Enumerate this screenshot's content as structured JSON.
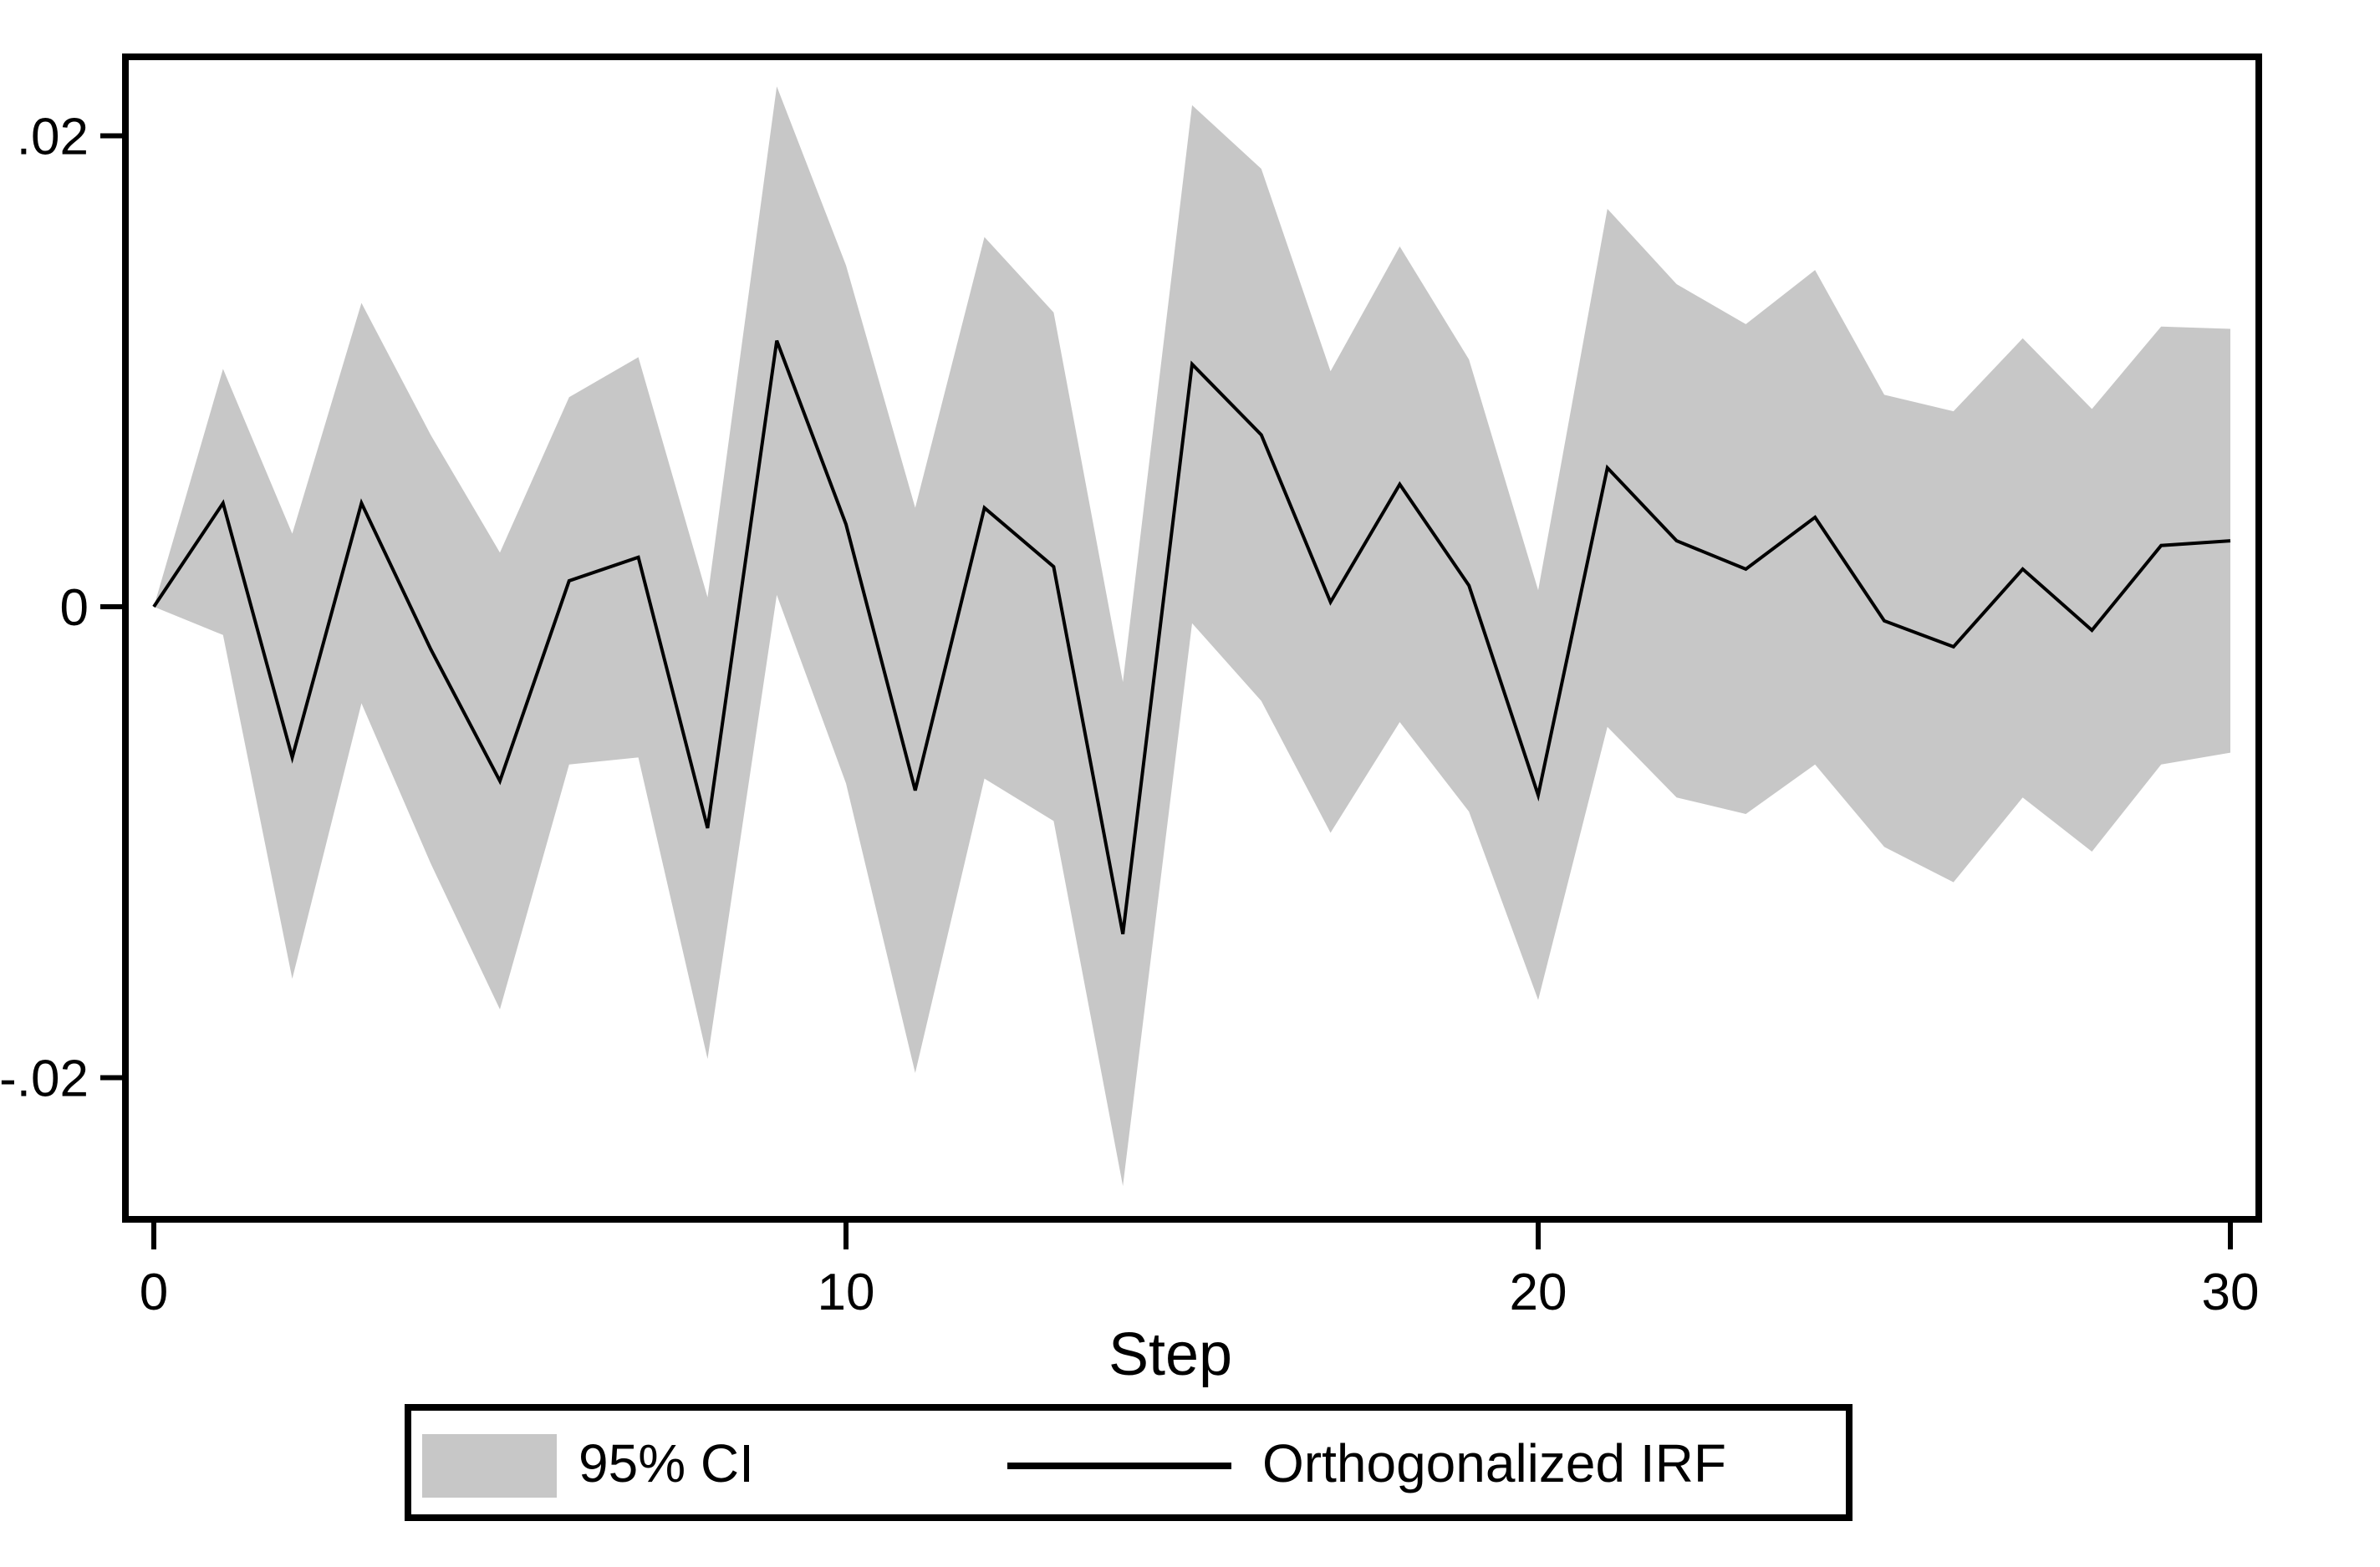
{
  "figure": {
    "background_color": "#ffffff",
    "line_color": "#000000",
    "band_color": "#c7c7c7",
    "frame_color": "#000000"
  },
  "axes": {
    "x_label": "Step",
    "x_ticks": [
      {
        "value": 0,
        "label": "0"
      },
      {
        "value": 10,
        "label": "10"
      },
      {
        "value": 20,
        "label": "20"
      },
      {
        "value": 30,
        "label": "30"
      }
    ],
    "y_ticks": [
      {
        "value": 0.02,
        "label": ".02"
      },
      {
        "value": 0,
        "label": "0"
      },
      {
        "value": -0.02,
        "label": "-.02"
      }
    ]
  },
  "legend": {
    "ci_label": "95% CI",
    "irf_label": "Orthogonalized IRF"
  },
  "chart_data": {
    "type": "area",
    "title": "",
    "xlabel": "Step",
    "ylabel": "",
    "x_range": [
      -0.4,
      30.4
    ],
    "y_range": [
      -0.026,
      0.0234
    ],
    "grid": false,
    "legend_position": "bottom-outside",
    "x": [
      0,
      1,
      2,
      3,
      4,
      5,
      6,
      7,
      8,
      9,
      10,
      11,
      12,
      13,
      14,
      15,
      16,
      17,
      18,
      19,
      20,
      21,
      22,
      23,
      24,
      25,
      26,
      27,
      28,
      29,
      30
    ],
    "series": [
      {
        "name": "Orthogonalized IRF",
        "role": "line",
        "values": [
          0.0,
          0.0044,
          -0.0064,
          0.0044,
          -0.0018,
          -0.0074,
          0.0011,
          0.0021,
          -0.0094,
          0.0113,
          0.0035,
          -0.0078,
          0.0042,
          0.0017,
          -0.0139,
          0.0103,
          0.0073,
          0.0002,
          0.0052,
          0.0009,
          -0.008,
          0.0059,
          0.0028,
          0.0016,
          0.0038,
          -0.0006,
          -0.0017,
          0.0016,
          -0.001,
          0.0026,
          0.0028
        ]
      },
      {
        "name": "95% CI",
        "role": "confidence-band",
        "lower": [
          0.0,
          -0.0012,
          -0.0158,
          -0.0041,
          -0.0109,
          -0.0171,
          -0.0067,
          -0.0064,
          -0.0192,
          0.0005,
          -0.0075,
          -0.0198,
          -0.0073,
          -0.0091,
          -0.0246,
          -0.0007,
          -0.004,
          -0.0096,
          -0.0049,
          -0.0087,
          -0.0167,
          -0.0051,
          -0.0081,
          -0.0088,
          -0.0067,
          -0.0102,
          -0.0117,
          -0.0081,
          -0.0104,
          -0.0067,
          -0.0062
        ],
        "upper": [
          0.0,
          0.0101,
          0.0031,
          0.0129,
          0.0073,
          0.0023,
          0.0089,
          0.0106,
          0.0004,
          0.0221,
          0.0145,
          0.0042,
          0.0157,
          0.0125,
          -0.0032,
          0.0213,
          0.0186,
          0.01,
          0.0153,
          0.0105,
          0.0007,
          0.0169,
          0.0137,
          0.012,
          0.0143,
          0.009,
          0.0083,
          0.0114,
          0.0084,
          0.0119,
          0.0118
        ]
      }
    ]
  }
}
